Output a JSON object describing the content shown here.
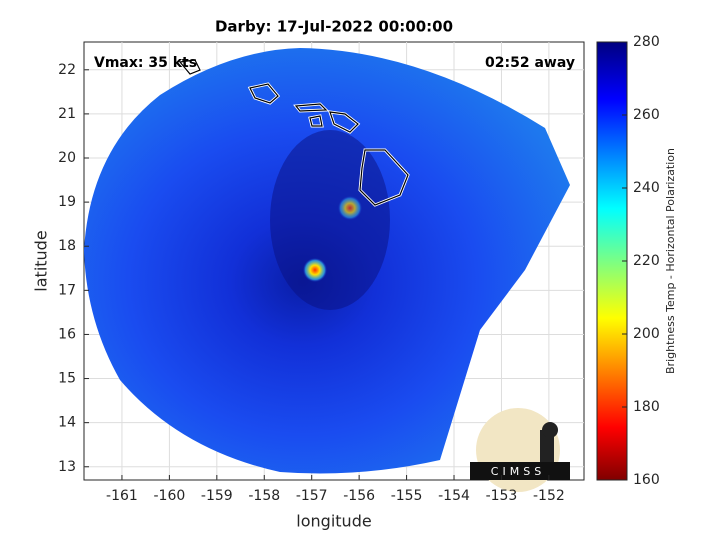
{
  "chart_data": {
    "type": "image",
    "title": "Darby: 17-Jul-2022 00:00:00",
    "x_label": "longitude",
    "y_label": "latitude",
    "annotations": [
      "Vmax: 35 kts",
      "02:52 away"
    ],
    "logo_text": "CIMSS",
    "xlim": [
      -161.8,
      -151.26
    ],
    "xticks": [
      -161,
      -160,
      -159,
      -158,
      -157,
      -156,
      -155,
      -154,
      -153,
      -152
    ],
    "ylim": [
      12.7,
      22.63
    ],
    "yticks": [
      13,
      14,
      15,
      16,
      17,
      18,
      19,
      20,
      21,
      22
    ],
    "grid": true,
    "colorbar": {
      "label": "Brightness Temp - Horizontal Polarization",
      "lim": [
        160,
        280
      ],
      "ticks": [
        160,
        180,
        200,
        220,
        240,
        260,
        280
      ]
    }
  }
}
